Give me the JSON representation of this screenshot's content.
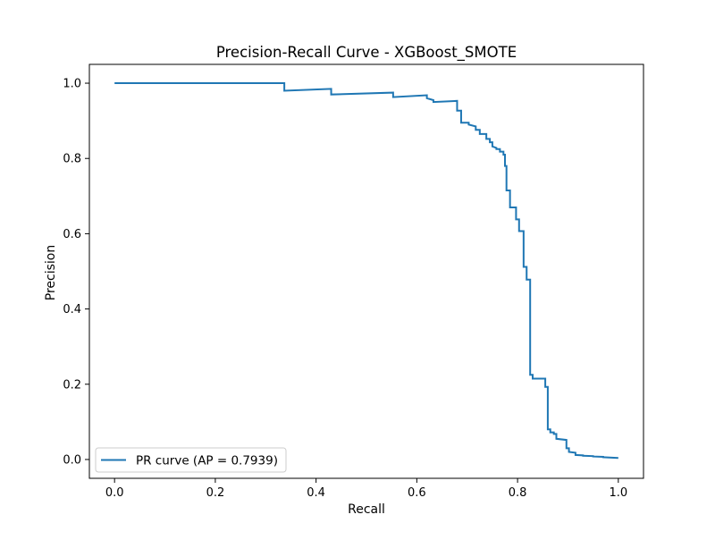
{
  "chart_data": {
    "type": "line",
    "title": "Precision-Recall Curve - XGBoost_SMOTE",
    "xlabel": "Recall",
    "ylabel": "Precision",
    "xlim": [
      -0.05,
      1.05
    ],
    "ylim": [
      -0.05,
      1.05
    ],
    "xticks": [
      0.0,
      0.2,
      0.4,
      0.6,
      0.8,
      1.0
    ],
    "xtick_labels": [
      "0.0",
      "0.2",
      "0.4",
      "0.6",
      "0.8",
      "1.0"
    ],
    "yticks": [
      0.0,
      0.2,
      0.4,
      0.6,
      0.8,
      1.0
    ],
    "ytick_labels": [
      "0.0",
      "0.2",
      "0.4",
      "0.6",
      "0.8",
      "1.0"
    ],
    "grid": false,
    "legend_position": "lower-left",
    "series": [
      {
        "name": "PR curve (AP = 0.7939)",
        "color": "#1f77b4",
        "x": [
          0.0,
          0.337,
          0.337,
          0.43,
          0.43,
          0.553,
          0.553,
          0.62,
          0.62,
          0.633,
          0.633,
          0.68,
          0.68,
          0.688,
          0.688,
          0.703,
          0.703,
          0.717,
          0.717,
          0.725,
          0.725,
          0.738,
          0.738,
          0.745,
          0.745,
          0.75,
          0.75,
          0.758,
          0.758,
          0.765,
          0.765,
          0.772,
          0.772,
          0.775,
          0.775,
          0.778,
          0.778,
          0.785,
          0.785,
          0.797,
          0.797,
          0.803,
          0.803,
          0.812,
          0.812,
          0.818,
          0.818,
          0.825,
          0.825,
          0.83,
          0.83,
          0.855,
          0.855,
          0.86,
          0.86,
          0.865,
          0.865,
          0.872,
          0.872,
          0.877,
          0.877,
          0.897,
          0.897,
          0.902,
          0.902,
          0.915,
          0.915,
          0.93,
          0.93,
          0.95,
          0.95,
          0.97,
          0.97,
          1.0
        ],
        "y": [
          1.0,
          1.0,
          0.98,
          0.985,
          0.97,
          0.975,
          0.963,
          0.968,
          0.96,
          0.955,
          0.95,
          0.953,
          0.927,
          0.927,
          0.895,
          0.895,
          0.89,
          0.885,
          0.876,
          0.876,
          0.865,
          0.865,
          0.852,
          0.852,
          0.843,
          0.843,
          0.832,
          0.828,
          0.825,
          0.825,
          0.818,
          0.818,
          0.81,
          0.81,
          0.78,
          0.78,
          0.715,
          0.715,
          0.67,
          0.67,
          0.638,
          0.638,
          0.607,
          0.607,
          0.512,
          0.512,
          0.478,
          0.478,
          0.225,
          0.225,
          0.215,
          0.215,
          0.193,
          0.193,
          0.08,
          0.08,
          0.072,
          0.072,
          0.068,
          0.068,
          0.055,
          0.052,
          0.03,
          0.03,
          0.02,
          0.018,
          0.012,
          0.011,
          0.01,
          0.009,
          0.008,
          0.007,
          0.006,
          0.004
        ]
      }
    ]
  }
}
